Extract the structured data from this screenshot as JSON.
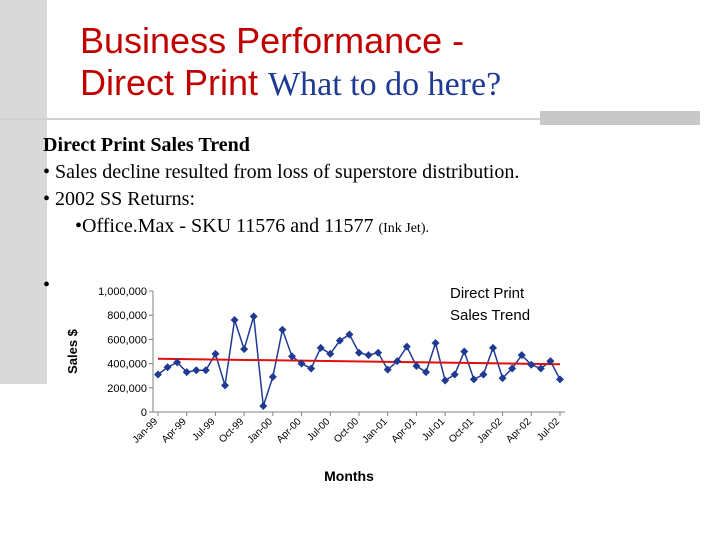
{
  "slide": {
    "title_line1": "Business Performance -",
    "title_line2": "Direct Print",
    "title_question": "What to do here?",
    "heading": "Direct Print Sales Trend",
    "bullets": [
      "• Sales decline resulted from loss of superstore distribution.",
      "• 2002 SS Returns:"
    ],
    "sub_bullet": "•Office.Max - SKU 11576 and 11577",
    "sub_bullet_note": "(Ink Jet).",
    "stray_bullet": "•"
  },
  "colors": {
    "title": "#c00000",
    "question": "#1f3a93",
    "series": "#1f3a93",
    "trend": "#e01010"
  },
  "chart_data": {
    "type": "line",
    "title": "Direct Print Sales Trend",
    "title_lines": [
      "Direct Print",
      "Sales Trend"
    ],
    "xlabel": "Months",
    "ylabel": "Sales $",
    "ylim": [
      0,
      1000000
    ],
    "y_ticks": [
      "0",
      "200,000",
      "400,000",
      "600,000",
      "800,000",
      "1,000,000"
    ],
    "x_tick_labels": [
      "Jan-99",
      "Apr-99",
      "Jul-99",
      "Oct-99",
      "Jan-00",
      "Apr-00",
      "Jul-00",
      "Oct-00",
      "Jan-01",
      "Apr-01",
      "Jul-01",
      "Oct-01",
      "Jan-02",
      "Apr-02",
      "Jul-02"
    ],
    "grid": false,
    "legend": "none",
    "series": [
      {
        "values": [
          310000,
          370000,
          410000,
          330000,
          345000,
          345000,
          480000,
          220000,
          760000,
          520000,
          790000,
          50000,
          290000,
          680000,
          460000,
          400000,
          360000,
          530000,
          480000,
          590000,
          640000,
          490000,
          470000,
          490000,
          350000,
          420000,
          540000,
          380000,
          330000,
          570000,
          260000,
          310000,
          500000,
          270000,
          310000,
          530000,
          280000,
          360000,
          470000,
          390000,
          360000,
          420000,
          270000
        ]
      }
    ],
    "trendline": {
      "start": 440000,
      "end": 395000
    }
  }
}
